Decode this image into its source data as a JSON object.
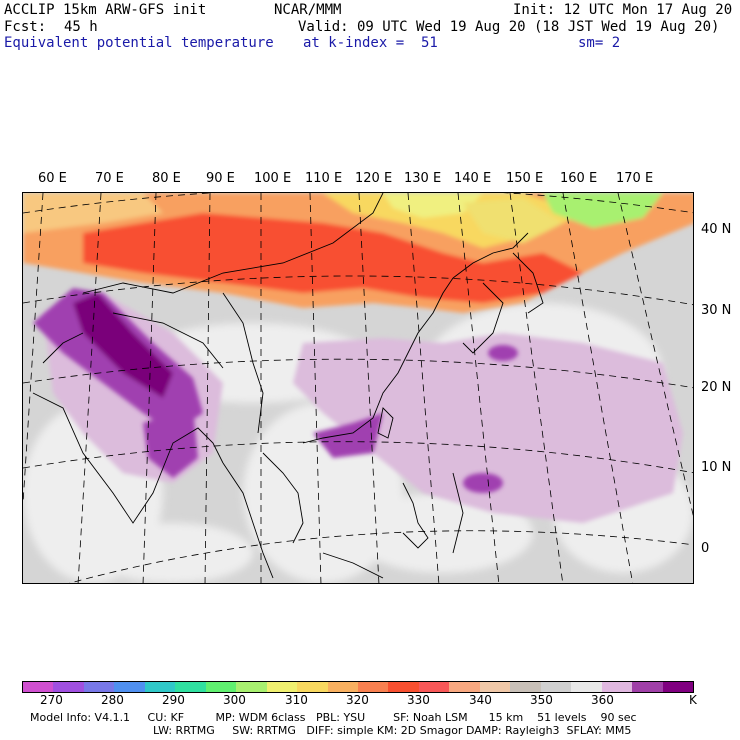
{
  "header": {
    "model": "ACCLIP 15km ARW-GFS init",
    "org": "NCAR/MMM",
    "init": "Init: 12 UTC Mon 17 Aug 20",
    "fcst_label": "Fcst:",
    "fcst_value": "45 h",
    "valid": "Valid: 09 UTC Wed 19 Aug 20 (18 JST Wed 19 Aug 20)",
    "field": "Equivalent potential temperature",
    "level": "at k-index =  51",
    "smooth": "sm= 2"
  },
  "map": {
    "lon_labels": [
      "60 E",
      "70 E",
      "80 E",
      "90 E",
      "100 E",
      "110 E",
      "120 E",
      "130 E",
      "140 E",
      "150 E",
      "160 E",
      "170 E"
    ],
    "lat_labels": [
      "40 N",
      "30 N",
      "20 N",
      "10 N",
      "0"
    ],
    "colors": {
      "ocean_gray": "#d7d7d7",
      "light_gray": "#eeeeee",
      "purple_light": "#e0bfe0",
      "purple_mid": "#a040b0",
      "purple_dark": "#7a007a",
      "red": "#f85030",
      "orange": "#f8a060",
      "yellow": "#f8f080",
      "green": "#a8f070"
    }
  },
  "colorbar": {
    "colors": [
      "#d050d0",
      "#a050e0",
      "#7878e8",
      "#5090f0",
      "#30c8c8",
      "#30e0a0",
      "#60f070",
      "#a8f070",
      "#f0f070",
      "#f8d860",
      "#f8b060",
      "#f88050",
      "#f85030",
      "#f85858",
      "#f8a880",
      "#f0c8a8",
      "#c8c0b8",
      "#d0d0d0",
      "#e8e8e8",
      "#e0b8e0",
      "#a040a8",
      "#800080"
    ],
    "tick_labels": [
      "270",
      "280",
      "290",
      "300",
      "310",
      "320",
      "330",
      "340",
      "350",
      "360"
    ],
    "units": "K"
  },
  "model_info": {
    "line1": "Model Info: V4.1.1     CU: KF         MP: WDM 6class   PBL: YSU        SF: Noah LSM      15 km    51 levels    90 sec",
    "line2": "LW: RRTMG     SW: RRTMG   DIFF: simple KM: 2D Smagor DAMP: Rayleigh3  SFLAY: MM5"
  }
}
